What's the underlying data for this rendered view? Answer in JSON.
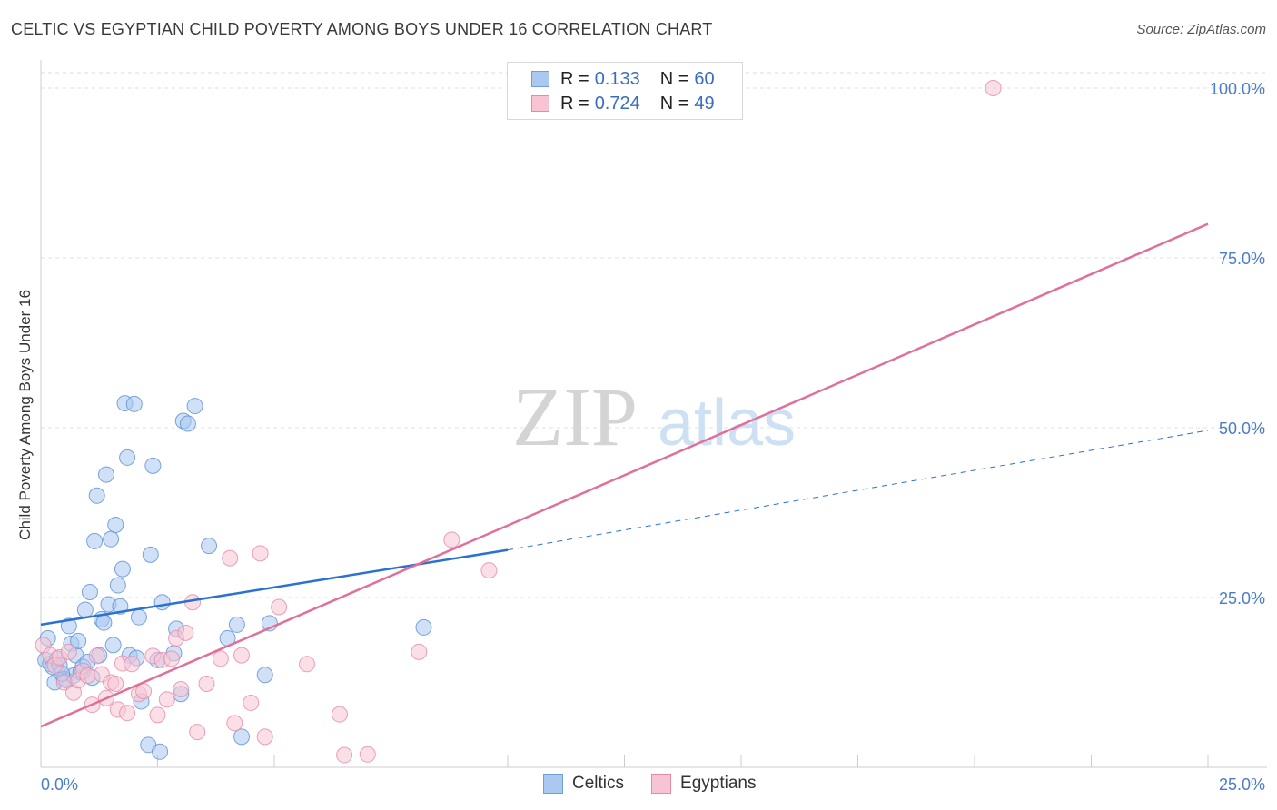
{
  "header": {
    "title": "CELTIC VS EGYPTIAN CHILD POVERTY AMONG BOYS UNDER 16 CORRELATION CHART",
    "source": "Source: ZipAtlas.com"
  },
  "watermark": {
    "zip": "ZIP",
    "atlas": "atlas"
  },
  "legend": {
    "rows": [
      {
        "r_label": "R =",
        "r_value": "0.133",
        "n_label": "N =",
        "n_value": "60",
        "color": "#aac8f0",
        "border": "#6f9fd8"
      },
      {
        "r_label": "R =",
        "r_value": "0.724",
        "n_label": "N =",
        "n_value": "49",
        "color": "#f8c4d4",
        "border": "#e58aa8"
      }
    ]
  },
  "bottom_legend": {
    "celtics": "Celtics",
    "egyptians": "Egyptians"
  },
  "chart_data": {
    "type": "scatter",
    "title": "CELTIC VS EGYPTIAN CHILD POVERTY AMONG BOYS UNDER 16 CORRELATION CHART",
    "xlabel": "",
    "ylabel": "Child Poverty Among Boys Under 16",
    "xlim": [
      0,
      25
    ],
    "ylim": [
      0,
      100
    ],
    "x_tick_labels": [
      "0.0%",
      "25.0%"
    ],
    "y_ticks": [
      25,
      50,
      75,
      100
    ],
    "y_tick_labels": [
      "25.0%",
      "50.0%",
      "75.0%",
      "100.0%"
    ],
    "series": [
      {
        "name": "Celtics",
        "color": "#aac8f0",
        "stroke": "#5b8fd6",
        "line_color": "#2a72d0",
        "trend": {
          "x0": 0,
          "y0": 21.0,
          "x1": 10.0,
          "y1": 32.0,
          "dash_to_x": 25.0,
          "dash_to_y": 49.6
        },
        "points": [
          [
            0.1,
            15.8
          ],
          [
            0.2,
            15.2
          ],
          [
            0.25,
            14.8
          ],
          [
            0.3,
            12.5
          ],
          [
            0.35,
            16.0
          ],
          [
            0.4,
            15.0
          ],
          [
            0.5,
            13.0
          ],
          [
            0.55,
            12.8
          ],
          [
            0.6,
            20.8
          ],
          [
            0.65,
            18.2
          ],
          [
            0.7,
            13.5
          ],
          [
            0.75,
            16.5
          ],
          [
            0.8,
            18.6
          ],
          [
            0.85,
            14.0
          ],
          [
            0.9,
            14.8
          ],
          [
            0.95,
            23.2
          ],
          [
            1.0,
            15.5
          ],
          [
            1.05,
            25.8
          ],
          [
            1.1,
            13.2
          ],
          [
            1.15,
            33.3
          ],
          [
            1.2,
            40.0
          ],
          [
            1.25,
            16.5
          ],
          [
            1.3,
            21.8
          ],
          [
            1.35,
            21.3
          ],
          [
            1.4,
            43.1
          ],
          [
            1.45,
            24.0
          ],
          [
            1.5,
            33.6
          ],
          [
            1.55,
            18.0
          ],
          [
            1.6,
            35.7
          ],
          [
            1.65,
            26.8
          ],
          [
            1.7,
            23.7
          ],
          [
            1.75,
            29.2
          ],
          [
            1.8,
            53.6
          ],
          [
            1.85,
            45.6
          ],
          [
            1.9,
            16.5
          ],
          [
            2.0,
            53.5
          ],
          [
            2.05,
            16.1
          ],
          [
            2.1,
            22.1
          ],
          [
            2.15,
            9.7
          ],
          [
            2.3,
            3.3
          ],
          [
            2.35,
            31.3
          ],
          [
            2.4,
            44.4
          ],
          [
            2.5,
            15.8
          ],
          [
            2.55,
            2.3
          ],
          [
            2.6,
            24.3
          ],
          [
            2.85,
            16.8
          ],
          [
            2.9,
            20.4
          ],
          [
            3.0,
            10.8
          ],
          [
            3.05,
            51.0
          ],
          [
            3.15,
            50.6
          ],
          [
            3.3,
            53.2
          ],
          [
            3.6,
            32.6
          ],
          [
            4.0,
            19.0
          ],
          [
            4.2,
            21.0
          ],
          [
            4.3,
            4.5
          ],
          [
            4.8,
            13.6
          ],
          [
            4.9,
            21.2
          ],
          [
            8.2,
            20.6
          ],
          [
            0.15,
            19.0
          ],
          [
            0.45,
            13.8
          ]
        ]
      },
      {
        "name": "Egyptians",
        "color": "#f8c4d4",
        "stroke": "#e58aa8",
        "line_color": "#e0709a",
        "trend": {
          "x0": 0,
          "y0": 6.0,
          "x1": 25.0,
          "y1": 80.0
        },
        "points": [
          [
            0.05,
            18.0
          ],
          [
            0.2,
            16.5
          ],
          [
            0.3,
            15.0
          ],
          [
            0.4,
            16.2
          ],
          [
            0.5,
            12.5
          ],
          [
            0.6,
            17.0
          ],
          [
            0.7,
            11.0
          ],
          [
            0.8,
            12.8
          ],
          [
            0.9,
            14.2
          ],
          [
            1.0,
            13.5
          ],
          [
            1.1,
            9.2
          ],
          [
            1.2,
            16.4
          ],
          [
            1.3,
            13.7
          ],
          [
            1.4,
            10.2
          ],
          [
            1.5,
            12.5
          ],
          [
            1.6,
            12.3
          ],
          [
            1.65,
            8.5
          ],
          [
            1.75,
            15.3
          ],
          [
            1.85,
            8.0
          ],
          [
            1.95,
            15.2
          ],
          [
            2.1,
            10.8
          ],
          [
            2.2,
            11.2
          ],
          [
            2.4,
            16.4
          ],
          [
            2.5,
            7.7
          ],
          [
            2.6,
            15.8
          ],
          [
            2.7,
            10.0
          ],
          [
            2.8,
            16.0
          ],
          [
            2.9,
            19.0
          ],
          [
            3.0,
            11.5
          ],
          [
            3.1,
            19.8
          ],
          [
            3.25,
            24.3
          ],
          [
            3.35,
            5.2
          ],
          [
            3.55,
            12.3
          ],
          [
            3.85,
            16.0
          ],
          [
            4.05,
            30.8
          ],
          [
            4.15,
            6.5
          ],
          [
            4.3,
            16.5
          ],
          [
            4.5,
            9.5
          ],
          [
            4.7,
            31.5
          ],
          [
            4.8,
            4.5
          ],
          [
            5.1,
            23.6
          ],
          [
            5.7,
            15.2
          ],
          [
            6.4,
            7.8
          ],
          [
            6.5,
            1.8
          ],
          [
            7.0,
            1.9
          ],
          [
            8.1,
            17.0
          ],
          [
            8.8,
            33.5
          ],
          [
            9.6,
            29.0
          ],
          [
            20.4,
            100.0
          ]
        ]
      }
    ]
  }
}
